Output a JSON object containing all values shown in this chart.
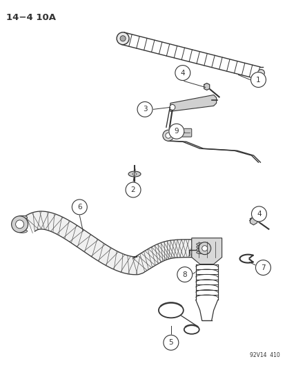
{
  "title": "14−4 10A",
  "footer": "92V14  410",
  "bg_color": "#ffffff",
  "fig_width": 4.14,
  "fig_height": 5.33,
  "dpi": 100,
  "line_color": "#333333",
  "lw_main": 1.0,
  "lw_thin": 0.7,
  "circle_r": 0.028,
  "circle_fontsize": 7.0
}
